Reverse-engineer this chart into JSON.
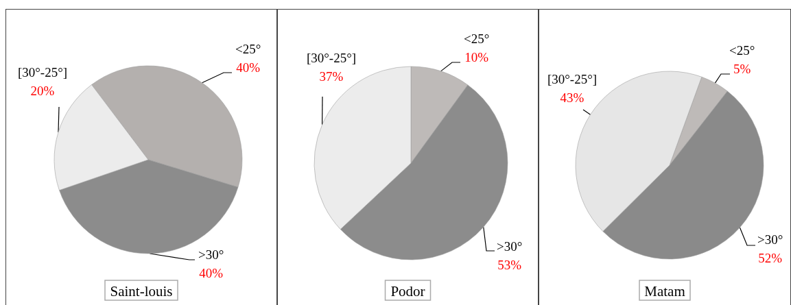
{
  "chart_data": [
    {
      "type": "pie",
      "title": "Saint-louis",
      "categories": [
        "<25°",
        ">30°",
        "[30°-25°]"
      ],
      "values": [
        40,
        40,
        20
      ],
      "colors": [
        "#b4b0ae",
        "#8c8c8c",
        "#ececec"
      ],
      "value_labels": [
        "40%",
        "40%",
        "20%"
      ]
    },
    {
      "type": "pie",
      "title": "Podor",
      "categories": [
        "<25°",
        ">30°",
        "[30°-25°]"
      ],
      "values": [
        10,
        53,
        37
      ],
      "colors": [
        "#bebab8",
        "#8c8c8c",
        "#ececec"
      ],
      "value_labels": [
        "10%",
        "53%",
        "37%"
      ]
    },
    {
      "type": "pie",
      "title": "Matam",
      "categories": [
        "<25°",
        ">30°",
        "[30°-25°]"
      ],
      "values": [
        5,
        52,
        43
      ],
      "colors": [
        "#bebab8",
        "#8a8a8a",
        "#e6e6e6"
      ],
      "value_labels": [
        "5%",
        "52%",
        "43%"
      ]
    }
  ]
}
